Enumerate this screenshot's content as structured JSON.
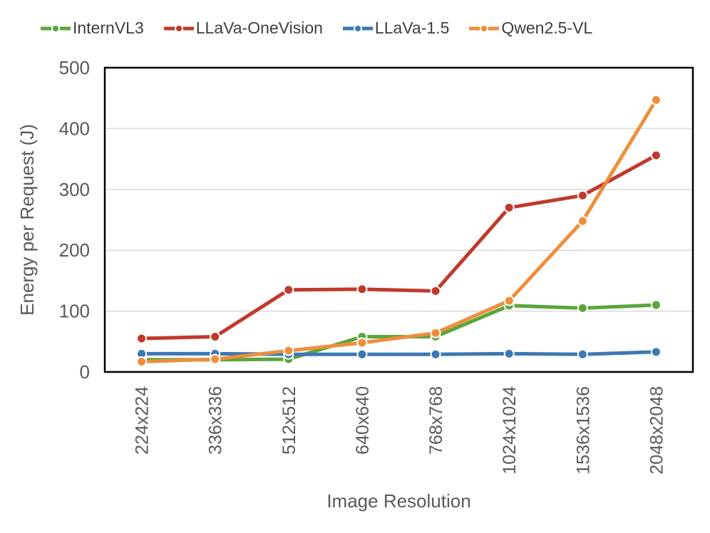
{
  "chart_data": {
    "type": "line",
    "title": "",
    "xlabel": "Image Resolution",
    "ylabel": "Energy per Request (J)",
    "ylim": [
      0,
      500
    ],
    "yticks": [
      0,
      100,
      200,
      300,
      400,
      500
    ],
    "grid": "horizontal",
    "legend_position": "top",
    "marker_style": "line-with-circle-marker",
    "categories": [
      "224x224",
      "336x336",
      "512x512",
      "640x640",
      "768x768",
      "1024x1024",
      "1536x1536",
      "2048x2048"
    ],
    "series": [
      {
        "name": "InternVL3",
        "color": "#5BA53B",
        "values": [
          20,
          20,
          21,
          58,
          58,
          109,
          105,
          110
        ]
      },
      {
        "name": "LLaVa-OneVision",
        "color": "#C0392B",
        "values": [
          55,
          58,
          135,
          136,
          133,
          270,
          290,
          356
        ]
      },
      {
        "name": "LLaVa-1.5",
        "color": "#3C78B5",
        "values": [
          30,
          30,
          29,
          29,
          29,
          30,
          29,
          33
        ]
      },
      {
        "name": "Qwen2.5-VL",
        "color": "#EE8E3C",
        "values": [
          17,
          21,
          35,
          48,
          64,
          117,
          248,
          447
        ]
      }
    ],
    "colors": {
      "gridline": "#D9D9D9",
      "plot_border": "#000000",
      "axis_text": "#595959",
      "legend_text": "#3f3f3f",
      "background": "#ffffff"
    }
  }
}
